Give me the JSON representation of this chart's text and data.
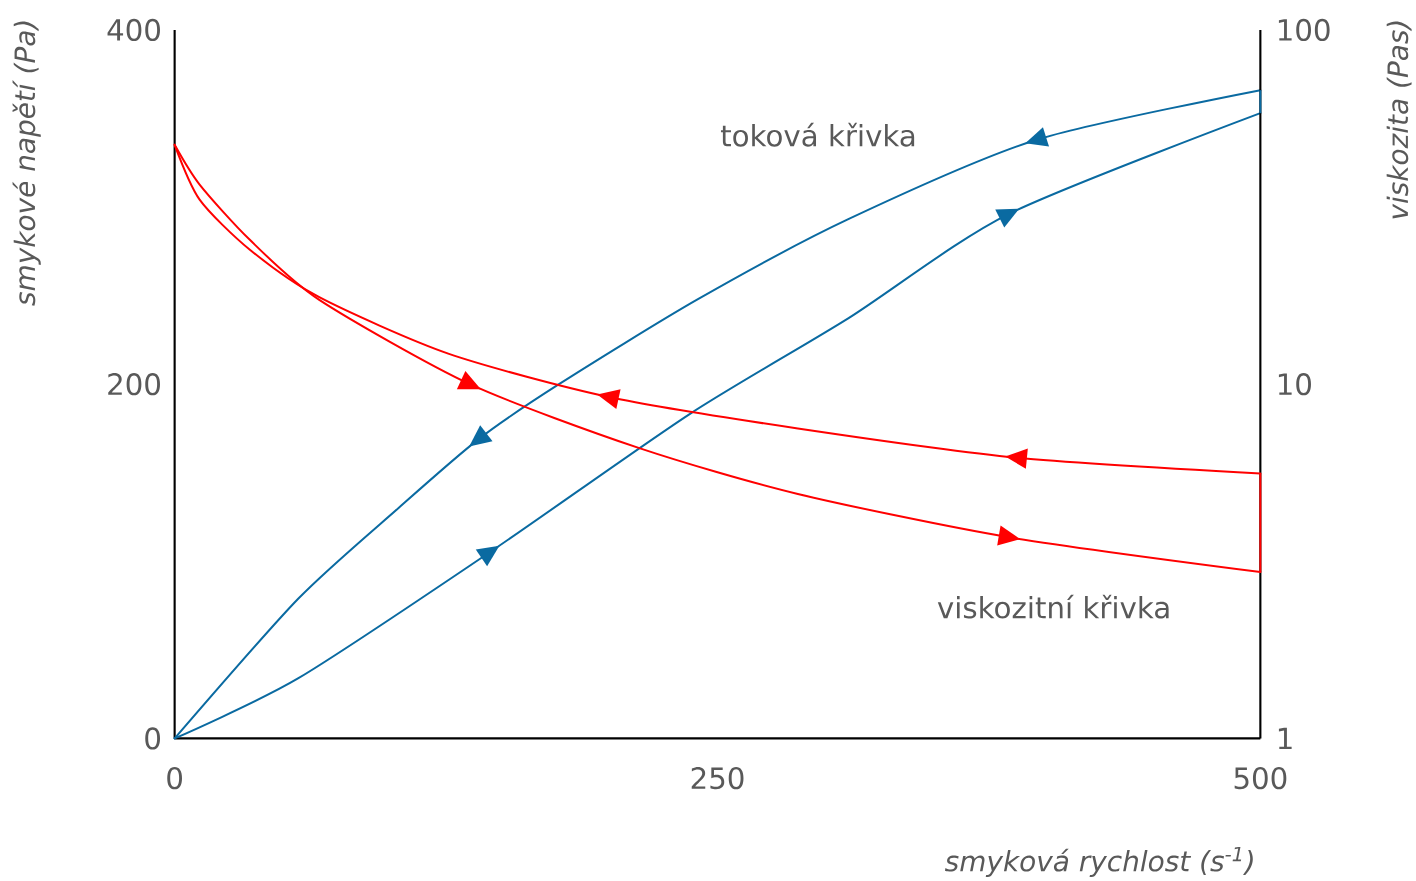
{
  "chart_data": {
    "type": "line",
    "xlabel": "smyková rychlost (s$^{-1}$)",
    "ylabel": "smykové napětí (Pa)",
    "y2label": "viskozita (Pas)",
    "xlim": [
      0,
      500
    ],
    "xticks": [
      0,
      250,
      500
    ],
    "ylim": [
      0,
      400
    ],
    "yticks": [
      0,
      200,
      400
    ],
    "y2lim": [
      1,
      100
    ],
    "y2ticks": [
      1,
      10,
      100
    ],
    "log": "y2",
    "series": [
      {
        "color": "#0a6aa1",
        "x": [
          0,
          57,
          145,
          237,
          310,
          384,
          500
        ],
        "values": [
          0,
          34,
          105,
          183,
          237,
          296,
          353
        ]
      },
      {
        "name": "toková křivka",
        "color": "#0a6aa1",
        "x": [
          0,
          57,
          103,
          140,
          177,
          241,
          310,
          397,
          500
        ],
        "values": [
          0,
          79,
          130,
          169,
          200,
          248,
          293,
          338,
          366
        ]
      },
      {
        "name": "viskozitní křivka",
        "color": "#ff0000",
        "axis": "y2",
        "x": [
          0,
          11.5,
          34.5,
          66.6,
          136,
          214,
          287,
          384,
          500
        ],
        "values": [
          47.4,
          36.6,
          25.6,
          17.3,
          10,
          6.6,
          4.9,
          3.7,
          2.95
        ]
      },
      {
        "color": "#ff0000",
        "axis": "y2",
        "x": [
          0,
          11.5,
          34.5,
          66.6,
          126,
          200,
          287,
          388,
          500
        ],
        "values": [
          47.4,
          33.2,
          24,
          17.6,
          12.2,
          9.2,
          7.5,
          6.2,
          5.6
        ]
      }
    ]
  }
}
